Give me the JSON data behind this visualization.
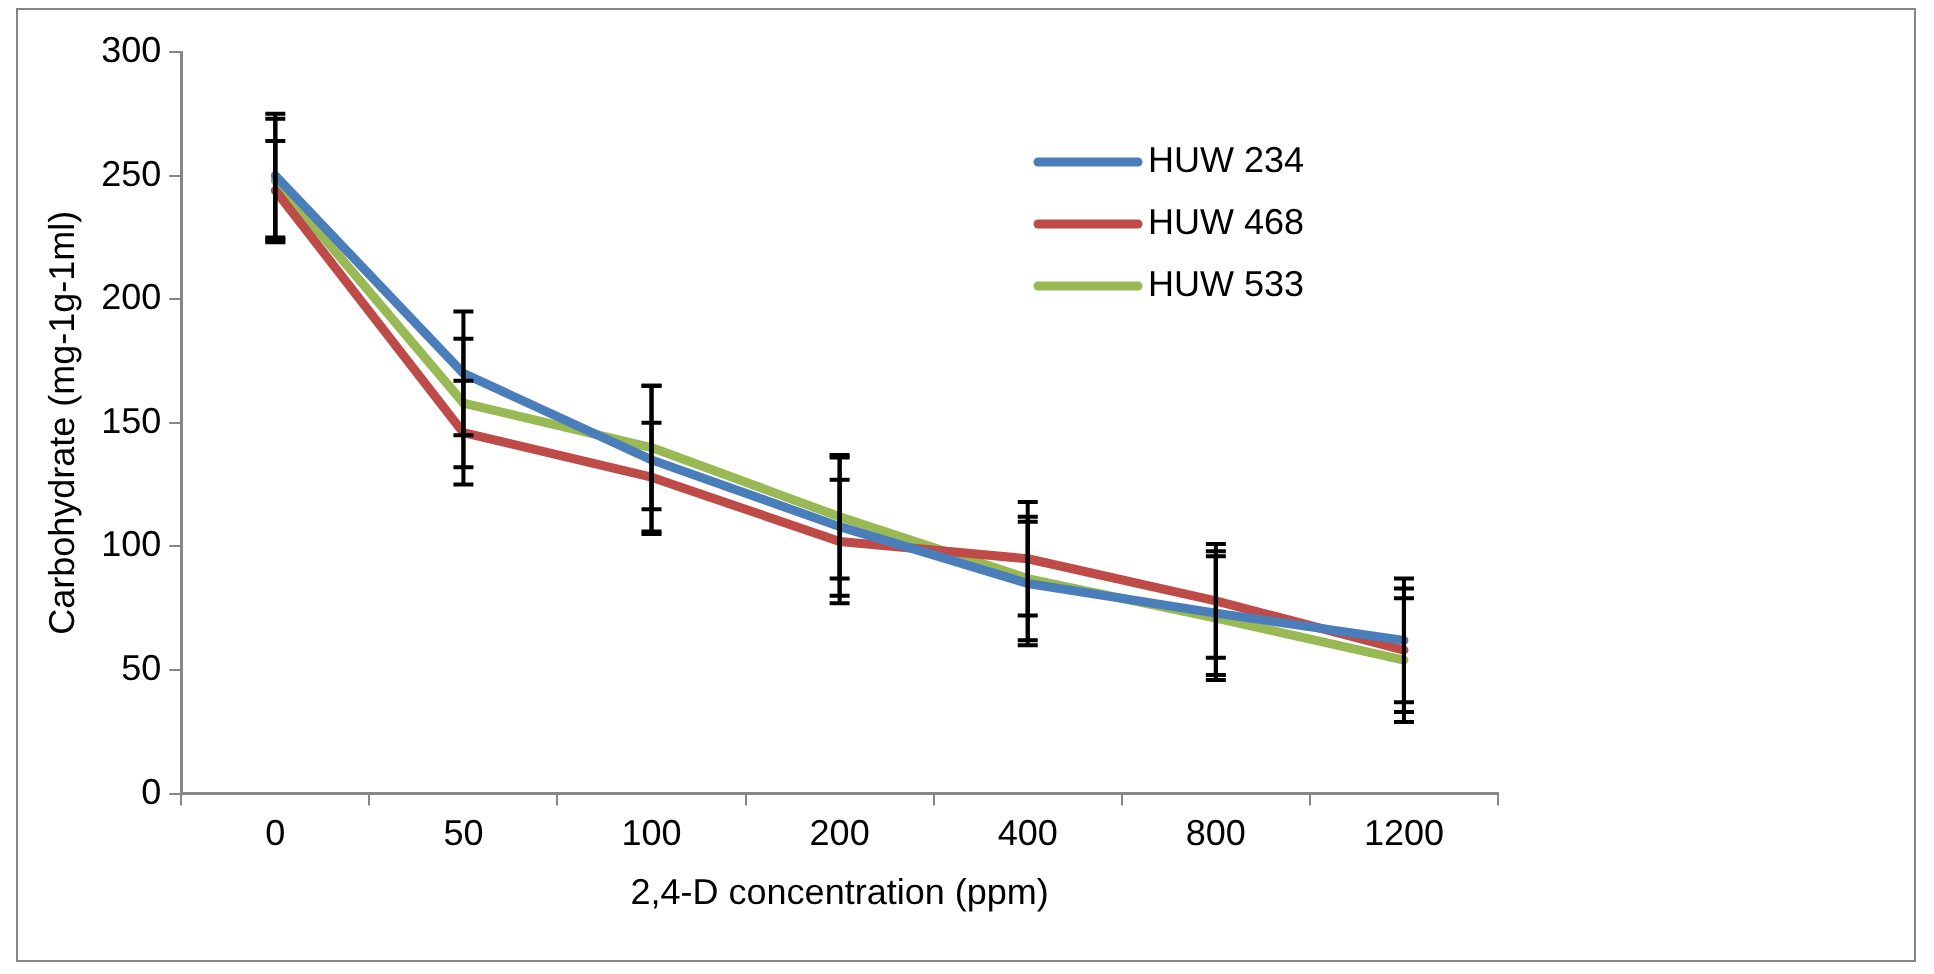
{
  "chart_data": {
    "type": "line",
    "xlabel": "2,4-D concentration (ppm)",
    "ylabel": "Carbohydrate (mg-1g-1ml)",
    "categories": [
      "0",
      "50",
      "100",
      "200",
      "400",
      "800",
      "1200"
    ],
    "ylim": [
      0,
      300
    ],
    "yticks": [
      0,
      50,
      100,
      150,
      200,
      250,
      300
    ],
    "grid": false,
    "legend": "right",
    "marker": "none",
    "series": [
      {
        "name": "HUW 234",
        "color": "#4a7ebb",
        "values": [
          250,
          170,
          135,
          108,
          85,
          73,
          62
        ],
        "errors": [
          25,
          25,
          30,
          28,
          25,
          25,
          25
        ]
      },
      {
        "name": "HUW 468",
        "color": "#be4b48",
        "values": [
          244,
          146,
          128,
          102,
          95,
          78,
          58
        ],
        "errors": [
          20,
          21,
          22,
          25,
          23,
          23,
          25
        ]
      },
      {
        "name": "HUW 533",
        "color": "#98b954",
        "values": [
          248,
          158,
          140,
          112,
          87,
          71,
          54
        ],
        "errors": [
          25,
          26,
          25,
          25,
          25,
          25,
          25
        ]
      }
    ]
  }
}
